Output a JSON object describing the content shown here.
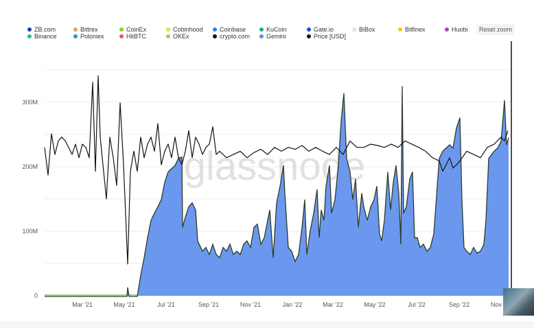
{
  "legend": [
    {
      "label": "ZB.com",
      "color": "#1f3f99"
    },
    {
      "label": "Bittrex",
      "color": "#e8a050"
    },
    {
      "label": "CoinEx",
      "color": "#7ed321"
    },
    {
      "label": "Cobinhood",
      "color": "#d4e157"
    },
    {
      "label": "Coinbase",
      "color": "#1e88e5"
    },
    {
      "label": "KuCoin",
      "color": "#26a69a"
    },
    {
      "label": "Gate.io",
      "color": "#1f4fcc"
    },
    {
      "label": "BiBox",
      "color": "#e3e3e3"
    },
    {
      "label": "Bitfinex",
      "color": "#f5c518"
    },
    {
      "label": "Huobi",
      "color": "#ab47bc"
    },
    {
      "label": "Binance",
      "color": "#26b5a6"
    },
    {
      "label": "Poloniex",
      "color": "#1a9ad6"
    },
    {
      "label": "HitBTC",
      "color": "#e05a5a"
    },
    {
      "label": "OKEx",
      "color": "#9ccc65"
    },
    {
      "label": "crypto.com",
      "color": "#111111"
    },
    {
      "label": "Gemini",
      "color": "#5b8def"
    },
    {
      "label": "Price [USD]",
      "color": "#111111"
    }
  ],
  "reset_zoom_label": "Reset zoom",
  "watermark": "glassnode",
  "chart_data": {
    "type": "area",
    "stacked": true,
    "title": "",
    "xlabel": "",
    "ylabel": "",
    "ylim": [
      0,
      350
    ],
    "y_unit": "M",
    "y_ticks": [
      "0",
      "100M",
      "200M",
      "300M"
    ],
    "y_tick_values": [
      0,
      100,
      200,
      300
    ],
    "x_ticks": [
      "Mar '21",
      "May '21",
      "Jul '21",
      "Sep '21",
      "Nov '21",
      "Jan '22",
      "Mar '22",
      "May '22",
      "Jul '22",
      "Sep '22",
      "Nov '22"
    ],
    "x_tick_dates": [
      "2021-03-01",
      "2021-05-01",
      "2021-07-01",
      "2021-09-01",
      "2021-11-01",
      "2022-01-01",
      "2022-03-01",
      "2022-05-01",
      "2022-07-01",
      "2022-09-01",
      "2022-11-01"
    ],
    "xlim": [
      "2021-01-05",
      "2022-11-12"
    ],
    "grid": true,
    "legend_position": "top",
    "series": [
      {
        "name": "Gemini",
        "color": "#6b98ee",
        "points": [
          [
            "2021-01-05",
            0
          ],
          [
            "2021-05-05",
            0
          ],
          [
            "2021-05-06",
            14
          ],
          [
            "2021-05-08",
            0
          ],
          [
            "2021-05-20",
            0
          ],
          [
            "2021-05-25",
            33
          ],
          [
            "2021-05-30",
            60
          ],
          [
            "2021-06-04",
            91
          ],
          [
            "2021-06-09",
            118
          ],
          [
            "2021-06-14",
            129
          ],
          [
            "2021-06-19",
            139
          ],
          [
            "2021-06-24",
            150
          ],
          [
            "2021-06-29",
            177
          ],
          [
            "2021-07-04",
            193
          ],
          [
            "2021-07-09",
            198
          ],
          [
            "2021-07-14",
            203
          ],
          [
            "2021-07-19",
            214
          ],
          [
            "2021-07-24",
            216
          ],
          [
            "2021-07-25",
            107
          ],
          [
            "2021-07-29",
            123
          ],
          [
            "2021-08-03",
            139
          ],
          [
            "2021-08-08",
            145
          ],
          [
            "2021-08-13",
            134
          ],
          [
            "2021-08-16",
            86
          ],
          [
            "2021-08-23",
            70
          ],
          [
            "2021-08-28",
            76
          ],
          [
            "2021-09-02",
            65
          ],
          [
            "2021-09-07",
            81
          ],
          [
            "2021-09-12",
            65
          ],
          [
            "2021-09-17",
            60
          ],
          [
            "2021-09-22",
            76
          ],
          [
            "2021-09-27",
            70
          ],
          [
            "2021-10-02",
            81
          ],
          [
            "2021-10-07",
            65
          ],
          [
            "2021-10-12",
            70
          ],
          [
            "2021-10-17",
            65
          ],
          [
            "2021-10-22",
            81
          ],
          [
            "2021-10-27",
            86
          ],
          [
            "2021-11-01",
            76
          ],
          [
            "2021-11-06",
            107
          ],
          [
            "2021-11-11",
            112
          ],
          [
            "2021-11-16",
            81
          ],
          [
            "2021-11-21",
            91
          ],
          [
            "2021-11-26",
            118
          ],
          [
            "2021-11-29",
            134
          ],
          [
            "2021-12-04",
            60
          ],
          [
            "2021-12-09",
            145
          ],
          [
            "2021-12-14",
            171
          ],
          [
            "2021-12-19",
            203
          ],
          [
            "2021-12-21",
            160
          ],
          [
            "2021-12-26",
            76
          ],
          [
            "2021-12-31",
            70
          ],
          [
            "2022-01-05",
            54
          ],
          [
            "2022-01-10",
            65
          ],
          [
            "2022-01-15",
            107
          ],
          [
            "2022-01-19",
            150
          ],
          [
            "2022-01-22",
            65
          ],
          [
            "2022-01-27",
            102
          ],
          [
            "2022-02-01",
            129
          ],
          [
            "2022-02-06",
            166
          ],
          [
            "2022-02-09",
            91
          ],
          [
            "2022-02-12",
            134
          ],
          [
            "2022-02-16",
            118
          ],
          [
            "2022-02-19",
            171
          ],
          [
            "2022-02-24",
            203
          ],
          [
            "2022-02-27",
            129
          ],
          [
            "2022-03-04",
            150
          ],
          [
            "2022-03-09",
            203
          ],
          [
            "2022-03-13",
            272
          ],
          [
            "2022-03-17",
            315
          ],
          [
            "2022-03-21",
            214
          ],
          [
            "2022-03-26",
            193
          ],
          [
            "2022-03-30",
            150
          ],
          [
            "2022-04-03",
            182
          ],
          [
            "2022-04-07",
            107
          ],
          [
            "2022-04-12",
            160
          ],
          [
            "2022-04-15",
            139
          ],
          [
            "2022-04-20",
            118
          ],
          [
            "2022-04-25",
            139
          ],
          [
            "2022-04-30",
            150
          ],
          [
            "2022-05-04",
            171
          ],
          [
            "2022-05-08",
            97
          ],
          [
            "2022-05-11",
            86
          ],
          [
            "2022-05-15",
            118
          ],
          [
            "2022-05-20",
            193
          ],
          [
            "2022-05-24",
            134
          ],
          [
            "2022-05-28",
            177
          ],
          [
            "2022-06-01",
            203
          ],
          [
            "2022-06-05",
            160
          ],
          [
            "2022-06-08",
            81
          ],
          [
            "2022-06-10",
            326
          ],
          [
            "2022-06-12",
            129
          ],
          [
            "2022-06-16",
            139
          ],
          [
            "2022-06-21",
            182
          ],
          [
            "2022-06-25",
            193
          ],
          [
            "2022-06-28",
            91
          ],
          [
            "2022-07-02",
            91
          ],
          [
            "2022-07-06",
            76
          ],
          [
            "2022-07-11",
            81
          ],
          [
            "2022-07-16",
            70
          ],
          [
            "2022-07-21",
            76
          ],
          [
            "2022-07-26",
            97
          ],
          [
            "2022-08-03",
            214
          ],
          [
            "2022-08-08",
            225
          ],
          [
            "2022-08-13",
            230
          ],
          [
            "2022-08-18",
            235
          ],
          [
            "2022-08-23",
            230
          ],
          [
            "2022-08-28",
            261
          ],
          [
            "2022-09-02",
            277
          ],
          [
            "2022-09-05",
            150
          ],
          [
            "2022-09-08",
            76
          ],
          [
            "2022-09-12",
            70
          ],
          [
            "2022-09-17",
            65
          ],
          [
            "2022-09-22",
            76
          ],
          [
            "2022-09-27",
            67
          ],
          [
            "2022-10-02",
            70
          ],
          [
            "2022-10-07",
            81
          ],
          [
            "2022-10-10",
            118
          ],
          [
            "2022-10-14",
            214
          ],
          [
            "2022-10-22",
            225
          ],
          [
            "2022-10-27",
            230
          ],
          [
            "2022-11-01",
            240
          ],
          [
            "2022-11-06",
            304
          ],
          [
            "2022-11-09",
            235
          ],
          [
            "2022-11-12",
            246
          ]
        ]
      },
      {
        "name": "Price [USD]",
        "type": "line",
        "color": "#111111",
        "points": [
          [
            "2021-01-05",
            230
          ],
          [
            "2021-01-10",
            187
          ],
          [
            "2021-01-15",
            251
          ],
          [
            "2021-01-20",
            219
          ],
          [
            "2021-01-25",
            240
          ],
          [
            "2021-01-30",
            246
          ],
          [
            "2021-02-04",
            240
          ],
          [
            "2021-02-09",
            230
          ],
          [
            "2021-02-14",
            219
          ],
          [
            "2021-02-19",
            235
          ],
          [
            "2021-02-24",
            214
          ],
          [
            "2021-03-01",
            235
          ],
          [
            "2021-03-06",
            230
          ],
          [
            "2021-03-11",
            214
          ],
          [
            "2021-03-16",
            331
          ],
          [
            "2021-03-20",
            193
          ],
          [
            "2021-03-24",
            341
          ],
          [
            "2021-03-27",
            246
          ],
          [
            "2021-03-31",
            203
          ],
          [
            "2021-04-05",
            150
          ],
          [
            "2021-04-10",
            246
          ],
          [
            "2021-04-15",
            214
          ],
          [
            "2021-04-20",
            171
          ],
          [
            "2021-04-25",
            299
          ],
          [
            "2021-04-30",
            203
          ],
          [
            "2021-05-06",
            49
          ],
          [
            "2021-05-10",
            193
          ],
          [
            "2021-05-15",
            224
          ],
          [
            "2021-05-20",
            193
          ],
          [
            "2021-05-25",
            246
          ],
          [
            "2021-05-30",
            214
          ],
          [
            "2021-06-04",
            235
          ],
          [
            "2021-06-09",
            246
          ],
          [
            "2021-06-14",
            224
          ],
          [
            "2021-06-19",
            267
          ],
          [
            "2021-06-24",
            203
          ],
          [
            "2021-06-29",
            224
          ],
          [
            "2021-07-04",
            235
          ],
          [
            "2021-07-09",
            214
          ],
          [
            "2021-07-14",
            246
          ],
          [
            "2021-07-19",
            214
          ],
          [
            "2021-07-24",
            203
          ],
          [
            "2021-07-29",
            224
          ],
          [
            "2021-08-03",
            256
          ],
          [
            "2021-08-08",
            214
          ],
          [
            "2021-08-13",
            246
          ],
          [
            "2021-08-18",
            235
          ],
          [
            "2021-08-23",
            219
          ],
          [
            "2021-08-28",
            230
          ],
          [
            "2021-09-02",
            235
          ],
          [
            "2021-09-07",
            262
          ],
          [
            "2021-09-12",
            219
          ],
          [
            "2021-09-17",
            224
          ],
          [
            "2021-09-27",
            214
          ],
          [
            "2021-10-07",
            219
          ],
          [
            "2021-10-17",
            224
          ],
          [
            "2021-10-27",
            214
          ],
          [
            "2021-11-06",
            222
          ],
          [
            "2021-11-16",
            227
          ],
          [
            "2021-11-26",
            219
          ],
          [
            "2021-12-06",
            230
          ],
          [
            "2021-12-16",
            224
          ],
          [
            "2021-12-26",
            230
          ],
          [
            "2022-01-05",
            227
          ],
          [
            "2022-01-15",
            233
          ],
          [
            "2022-01-25",
            224
          ],
          [
            "2022-02-04",
            230
          ],
          [
            "2022-02-14",
            224
          ],
          [
            "2022-02-24",
            219
          ],
          [
            "2022-03-06",
            230
          ],
          [
            "2022-03-16",
            219
          ],
          [
            "2022-03-26",
            240
          ],
          [
            "2022-04-05",
            230
          ],
          [
            "2022-04-15",
            230
          ],
          [
            "2022-04-25",
            235
          ],
          [
            "2022-05-05",
            233
          ],
          [
            "2022-05-15",
            230
          ],
          [
            "2022-05-25",
            235
          ],
          [
            "2022-06-04",
            230
          ],
          [
            "2022-06-14",
            240
          ],
          [
            "2022-06-24",
            235
          ],
          [
            "2022-07-04",
            230
          ],
          [
            "2022-07-14",
            224
          ],
          [
            "2022-07-24",
            214
          ],
          [
            "2022-08-03",
            209
          ],
          [
            "2022-08-08",
            193
          ],
          [
            "2022-08-13",
            203
          ],
          [
            "2022-08-18",
            214
          ],
          [
            "2022-08-23",
            198
          ],
          [
            "2022-08-28",
            203
          ],
          [
            "2022-09-02",
            209
          ],
          [
            "2022-09-12",
            224
          ],
          [
            "2022-09-22",
            219
          ],
          [
            "2022-10-02",
            214
          ],
          [
            "2022-10-12",
            230
          ],
          [
            "2022-10-22",
            235
          ],
          [
            "2022-11-01",
            246
          ],
          [
            "2022-11-06",
            240
          ],
          [
            "2022-11-11",
            256
          ]
        ]
      }
    ]
  }
}
